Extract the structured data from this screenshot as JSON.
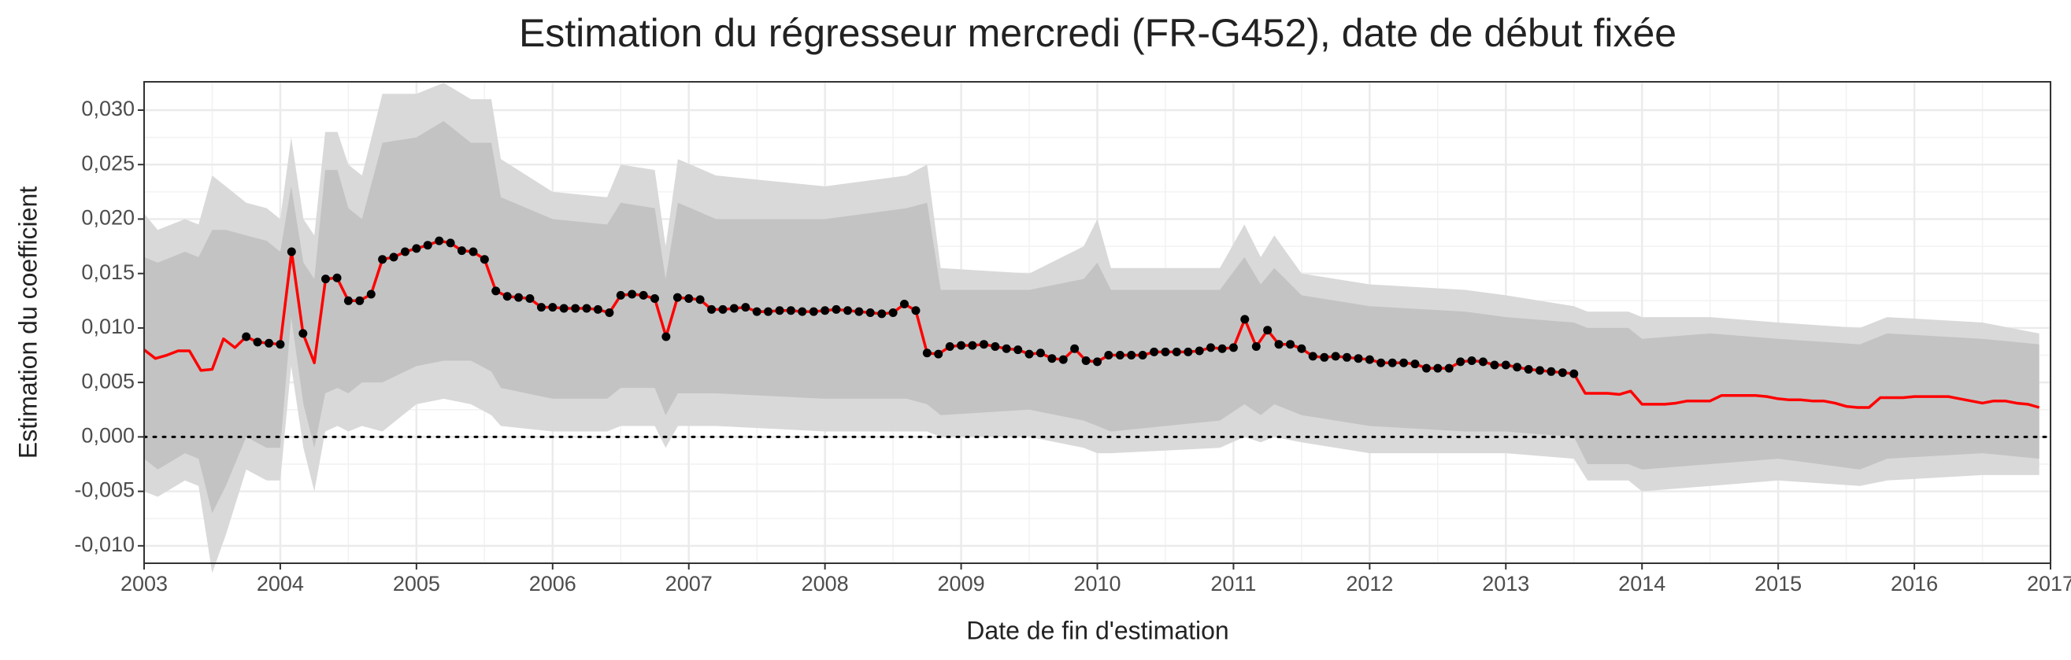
{
  "chart_data": {
    "type": "line",
    "title": "Estimation du régresseur mercredi (FR-G452), date de début fixée",
    "xlabel": "Date de fin d'estimation",
    "ylabel": "Estimation du coefficient",
    "xlim": [
      2003,
      2017
    ],
    "ylim": [
      -0.0116,
      0.0326
    ],
    "xticks": [
      2003,
      2004,
      2005,
      2006,
      2007,
      2008,
      2009,
      2010,
      2011,
      2012,
      2013,
      2014,
      2015,
      2016,
      2017
    ],
    "yticks": [
      {
        "value": -0.01,
        "label": "-0,010"
      },
      {
        "value": -0.005,
        "label": "-0,005"
      },
      {
        "value": 0,
        "label": "0,000"
      },
      {
        "value": 0.005,
        "label": "0,005"
      },
      {
        "value": 0.01,
        "label": "0,010"
      },
      {
        "value": 0.015,
        "label": "0,015"
      },
      {
        "value": 0.02,
        "label": "0,020"
      },
      {
        "value": 0.025,
        "label": "0,025"
      },
      {
        "value": 0.03,
        "label": "0,030"
      }
    ],
    "grid": true,
    "hline": 0,
    "x": [
      2003,
      2003.083,
      2003.167,
      2003.25,
      2003.333,
      2003.417,
      2003.5,
      2003.583,
      2003.667,
      2003.75,
      2003.833,
      2003.917,
      2004,
      2004.083,
      2004.167,
      2004.25,
      2004.333,
      2004.417,
      2004.5,
      2004.583,
      2004.667,
      2004.75,
      2004.833,
      2004.917,
      2005,
      2005.083,
      2005.167,
      2005.25,
      2005.333,
      2005.417,
      2005.5,
      2005.583,
      2005.667,
      2005.75,
      2005.833,
      2005.917,
      2006,
      2006.083,
      2006.167,
      2006.25,
      2006.333,
      2006.417,
      2006.5,
      2006.583,
      2006.667,
      2006.75,
      2006.833,
      2006.917,
      2007,
      2007.083,
      2007.167,
      2007.25,
      2007.333,
      2007.417,
      2007.5,
      2007.583,
      2007.667,
      2007.75,
      2007.833,
      2007.917,
      2008,
      2008.083,
      2008.167,
      2008.25,
      2008.333,
      2008.417,
      2008.5,
      2008.583,
      2008.667,
      2008.75,
      2008.833,
      2008.917,
      2009,
      2009.083,
      2009.167,
      2009.25,
      2009.333,
      2009.417,
      2009.5,
      2009.583,
      2009.667,
      2009.75,
      2009.833,
      2009.917,
      2010,
      2010.083,
      2010.167,
      2010.25,
      2010.333,
      2010.417,
      2010.5,
      2010.583,
      2010.667,
      2010.75,
      2010.833,
      2010.917,
      2011,
      2011.083,
      2011.167,
      2011.25,
      2011.333,
      2011.417,
      2011.5,
      2011.583,
      2011.667,
      2011.75,
      2011.833,
      2011.917,
      2012,
      2012.083,
      2012.167,
      2012.25,
      2012.333,
      2012.417,
      2012.5,
      2012.583,
      2012.667,
      2012.75,
      2012.833,
      2012.917,
      2013,
      2013.083,
      2013.167,
      2013.25,
      2013.333,
      2013.417,
      2013.5,
      2013.583,
      2013.667,
      2013.75,
      2013.833,
      2013.917,
      2014,
      2014.083,
      2014.167,
      2014.25,
      2014.333,
      2014.417,
      2014.5,
      2014.583,
      2014.667,
      2014.75,
      2014.833,
      2014.917,
      2015,
      2015.083,
      2015.167,
      2015.25,
      2015.333,
      2015.417,
      2015.5,
      2015.583,
      2015.667,
      2015.75,
      2015.833,
      2015.917,
      2016,
      2016.083,
      2016.167,
      2016.25,
      2016.333,
      2016.417,
      2016.5,
      2016.583,
      2016.667,
      2016.75,
      2016.833,
      2016.917
    ],
    "series": [
      {
        "color": "#ff0000",
        "values": [
          0.008,
          0.0072,
          0.0075,
          0.0079,
          0.0079,
          0.0061,
          0.0062,
          0.009,
          0.0082,
          0.0092,
          0.0087,
          0.0086,
          0.0085,
          0.017,
          0.0095,
          0.0068,
          0.0145,
          0.0146,
          0.0125,
          0.0125,
          0.0131,
          0.0163,
          0.0165,
          0.017,
          0.0173,
          0.0176,
          0.018,
          0.0178,
          0.0171,
          0.017,
          0.0163,
          0.0134,
          0.0129,
          0.0128,
          0.0127,
          0.0119,
          0.0119,
          0.0118,
          0.0118,
          0.0118,
          0.0117,
          0.0114,
          0.013,
          0.0131,
          0.013,
          0.0127,
          0.0092,
          0.0128,
          0.0127,
          0.0126,
          0.0117,
          0.0117,
          0.0118,
          0.0119,
          0.0115,
          0.0115,
          0.0116,
          0.0116,
          0.0115,
          0.0115,
          0.0116,
          0.0117,
          0.0116,
          0.0115,
          0.0114,
          0.0113,
          0.0114,
          0.0122,
          0.0116,
          0.0077,
          0.0076,
          0.0083,
          0.0084,
          0.0084,
          0.0085,
          0.0083,
          0.0081,
          0.008,
          0.0076,
          0.0077,
          0.0072,
          0.0071,
          0.0081,
          0.007,
          0.0069,
          0.0075,
          0.0075,
          0.0075,
          0.0075,
          0.0078,
          0.0078,
          0.0078,
          0.0078,
          0.0079,
          0.0082,
          0.0081,
          0.0082,
          0.0108,
          0.0083,
          0.0098,
          0.0085,
          0.0085,
          0.0081,
          0.0074,
          0.0073,
          0.0074,
          0.0073,
          0.0072,
          0.0071,
          0.0068,
          0.0068,
          0.0068,
          0.0067,
          0.0063,
          0.0063,
          0.0063,
          0.0069,
          0.007,
          0.0069,
          0.0066,
          0.0066,
          0.0064,
          0.0062,
          0.0061,
          0.006,
          0.0059,
          0.0058,
          0.004,
          0.004,
          0.004,
          0.0039,
          0.0042,
          0.003,
          0.003,
          0.003,
          0.0031,
          0.0033,
          0.0033,
          0.0033,
          0.0038,
          0.0038,
          0.0038,
          0.0038,
          0.0037,
          0.0035,
          0.0034,
          0.0034,
          0.0033,
          0.0033,
          0.0031,
          0.0028,
          0.0027,
          0.0027,
          0.0036,
          0.0036,
          0.0036,
          0.0037,
          0.0037,
          0.0037,
          0.0037,
          0.0035,
          0.0033,
          0.0031,
          0.0033,
          0.0033,
          0.0031,
          0.003,
          0.0027
        ]
      },
      {
        "color": "#000000",
        "marker": true,
        "values": [
          null,
          null,
          null,
          null,
          null,
          null,
          null,
          null,
          null,
          0.0092,
          0.0087,
          0.0086,
          0.0085,
          0.017,
          0.0095,
          null,
          0.0145,
          0.0146,
          0.0125,
          0.0125,
          0.0131,
          0.0163,
          0.0165,
          0.017,
          0.0173,
          0.0176,
          0.018,
          0.0178,
          0.0171,
          0.017,
          0.0163,
          0.0134,
          0.0129,
          0.0128,
          0.0127,
          0.0119,
          0.0119,
          0.0118,
          0.0118,
          0.0118,
          0.0117,
          0.0114,
          0.013,
          0.0131,
          0.013,
          0.0127,
          0.0092,
          0.0128,
          0.0127,
          0.0126,
          0.0117,
          0.0117,
          0.0118,
          0.0119,
          0.0115,
          0.0115,
          0.0116,
          0.0116,
          0.0115,
          0.0115,
          0.0116,
          0.0117,
          0.0116,
          0.0115,
          0.0114,
          0.0113,
          0.0114,
          0.0122,
          0.0116,
          0.0077,
          0.0076,
          0.0083,
          0.0084,
          0.0084,
          0.0085,
          0.0083,
          0.0081,
          0.008,
          0.0076,
          0.0077,
          0.0072,
          0.0071,
          0.0081,
          0.007,
          0.0069,
          0.0075,
          0.0075,
          0.0075,
          0.0075,
          0.0078,
          0.0078,
          0.0078,
          0.0078,
          0.0079,
          0.0082,
          0.0081,
          0.0082,
          0.0108,
          0.0083,
          0.0098,
          0.0085,
          0.0085,
          0.0081,
          0.0074,
          0.0073,
          0.0074,
          0.0073,
          0.0072,
          0.0071,
          0.0068,
          0.0068,
          0.0068,
          0.0067,
          0.0063,
          0.0063,
          0.0063,
          0.0069,
          0.007,
          0.0069,
          0.0066,
          0.0066,
          0.0064,
          0.0062,
          0.0061,
          0.006,
          0.0059,
          0.0058,
          null,
          null,
          null,
          null,
          null,
          null,
          null,
          null,
          null,
          null,
          null,
          null,
          null,
          null,
          null,
          null,
          null,
          null,
          null,
          null,
          null,
          null,
          null,
          null,
          null,
          null,
          null,
          null,
          null,
          null,
          null,
          null,
          null,
          null,
          null,
          null,
          null,
          null,
          null,
          null,
          null
        ]
      }
    ],
    "bands": [
      {
        "color": "#d9d9d9",
        "x": [
          2003,
          2003.1,
          2003.3,
          2003.4,
          2003.5,
          2003.6,
          2003.75,
          2003.9,
          2004,
          2004.08,
          2004.17,
          2004.25,
          2004.33,
          2004.42,
          2004.5,
          2004.6,
          2004.75,
          2005,
          2005.2,
          2005.4,
          2005.55,
          2005.62,
          2006,
          2006.4,
          2006.5,
          2006.75,
          2006.83,
          2006.92,
          2007.2,
          2008,
          2008.6,
          2008.75,
          2008.85,
          2009.5,
          2009.9,
          2010,
          2010.1,
          2010.9,
          2011.08,
          2011.2,
          2011.3,
          2011.5,
          2012,
          2012.7,
          2013,
          2013.5,
          2013.6,
          2013.9,
          2014,
          2014.5,
          2015,
          2015.6,
          2015.8,
          2016.5,
          2016.917
        ],
        "upper": [
          0.0205,
          0.019,
          0.02,
          0.0195,
          0.024,
          0.023,
          0.0215,
          0.021,
          0.02,
          0.0275,
          0.02,
          0.0185,
          0.028,
          0.028,
          0.025,
          0.024,
          0.0315,
          0.0315,
          0.0325,
          0.031,
          0.031,
          0.0255,
          0.0225,
          0.022,
          0.025,
          0.0245,
          0.0175,
          0.0255,
          0.024,
          0.023,
          0.024,
          0.025,
          0.0155,
          0.015,
          0.0175,
          0.02,
          0.0155,
          0.0155,
          0.0195,
          0.0165,
          0.0185,
          0.015,
          0.014,
          0.0135,
          0.013,
          0.012,
          0.0115,
          0.0115,
          0.011,
          0.011,
          0.0105,
          0.01,
          0.011,
          0.0105,
          0.0095
        ],
        "lower": [
          -0.005,
          -0.0055,
          -0.004,
          -0.0045,
          -0.0125,
          -0.009,
          -0.003,
          -0.004,
          -0.004,
          0.0065,
          -0.001,
          -0.005,
          0.0005,
          0.001,
          0.0005,
          0.001,
          0.0005,
          0.003,
          0.0035,
          0.003,
          0.002,
          0.001,
          0.0005,
          0.0005,
          0.001,
          0.001,
          -0.001,
          0.001,
          0.001,
          0.0005,
          0.0005,
          0.0005,
          0,
          0,
          -0.001,
          -0.0015,
          -0.0015,
          -0.001,
          0,
          -0.0005,
          0,
          -0.0005,
          -0.0015,
          -0.0015,
          -0.0015,
          -0.002,
          -0.004,
          -0.004,
          -0.005,
          -0.0045,
          -0.004,
          -0.0045,
          -0.004,
          -0.0035,
          -0.0035
        ]
      },
      {
        "color": "#c3c3c3",
        "x": [
          2003,
          2003.1,
          2003.3,
          2003.4,
          2003.5,
          2003.6,
          2003.75,
          2003.9,
          2004,
          2004.08,
          2004.17,
          2004.25,
          2004.33,
          2004.42,
          2004.5,
          2004.6,
          2004.75,
          2005,
          2005.2,
          2005.4,
          2005.55,
          2005.62,
          2006,
          2006.4,
          2006.5,
          2006.75,
          2006.83,
          2006.92,
          2007.2,
          2008,
          2008.6,
          2008.75,
          2008.85,
          2009.5,
          2009.9,
          2010,
          2010.1,
          2010.9,
          2011.08,
          2011.2,
          2011.3,
          2011.5,
          2012,
          2012.7,
          2013,
          2013.5,
          2013.6,
          2013.9,
          2014,
          2014.5,
          2015,
          2015.6,
          2015.8,
          2016.5,
          2016.917
        ],
        "upper": [
          0.0165,
          0.016,
          0.017,
          0.0165,
          0.019,
          0.019,
          0.0185,
          0.018,
          0.017,
          0.023,
          0.016,
          0.0145,
          0.0245,
          0.0245,
          0.021,
          0.02,
          0.027,
          0.0275,
          0.029,
          0.027,
          0.027,
          0.022,
          0.02,
          0.0195,
          0.0215,
          0.021,
          0.0145,
          0.0215,
          0.02,
          0.02,
          0.021,
          0.0215,
          0.0135,
          0.0135,
          0.0145,
          0.016,
          0.0135,
          0.0135,
          0.0165,
          0.014,
          0.0155,
          0.013,
          0.012,
          0.0115,
          0.011,
          0.0105,
          0.01,
          0.01,
          0.009,
          0.0095,
          0.009,
          0.0085,
          0.0095,
          0.009,
          0.0085
        ],
        "lower": [
          -0.002,
          -0.003,
          -0.0015,
          -0.002,
          -0.007,
          -0.0045,
          0,
          -0.001,
          -0.001,
          0.011,
          0.003,
          -0.001,
          0.004,
          0.0045,
          0.004,
          0.005,
          0.005,
          0.0065,
          0.007,
          0.007,
          0.006,
          0.0045,
          0.0035,
          0.0035,
          0.0045,
          0.0045,
          0.002,
          0.004,
          0.004,
          0.0035,
          0.0035,
          0.003,
          0.002,
          0.0025,
          0.0015,
          0.001,
          0.0005,
          0.0015,
          0.003,
          0.002,
          0.003,
          0.002,
          0.001,
          0.0005,
          0.0005,
          0,
          -0.0025,
          -0.0025,
          -0.003,
          -0.0025,
          -0.002,
          -0.003,
          -0.002,
          -0.0015,
          -0.002
        ]
      }
    ]
  }
}
